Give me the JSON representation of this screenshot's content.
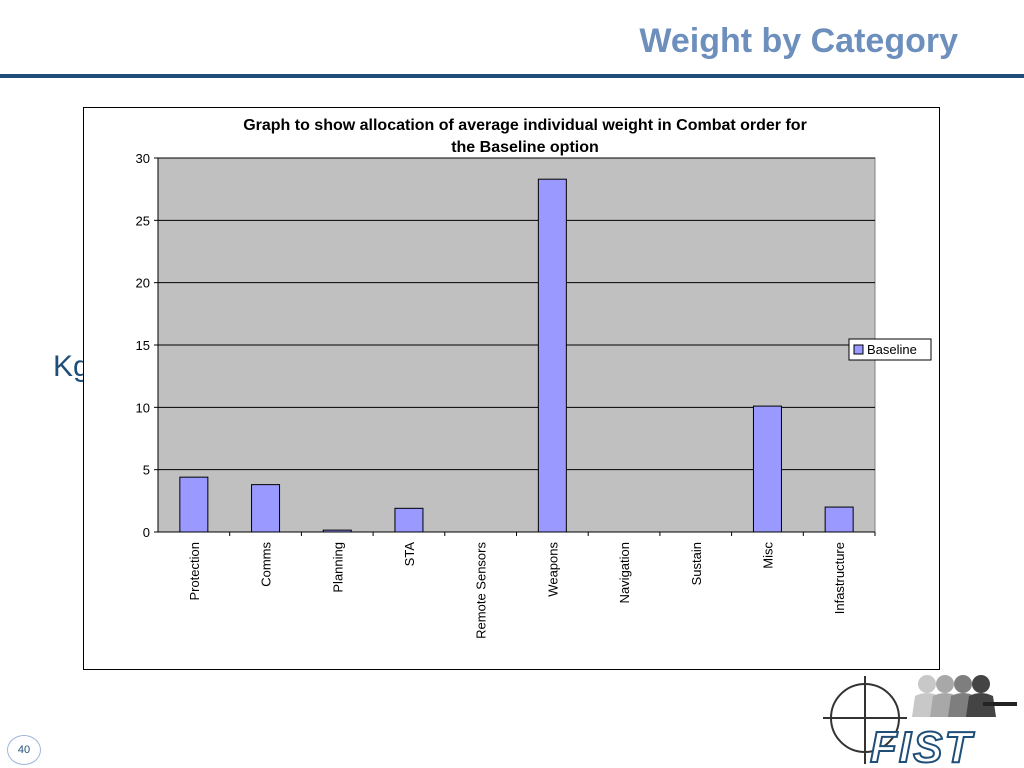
{
  "slide": {
    "title": "Weight by Category",
    "y_unit_label": "Kgs",
    "page_number": "40"
  },
  "logo": {
    "text": "FIST"
  },
  "colors": {
    "title": "#6d8fbd",
    "rule": "#1f4e79",
    "bar": "#9999ff",
    "plot_bg": "#c0c0c0"
  },
  "chart_data": {
    "type": "bar",
    "title": "Graph to show allocation of average individual weight in Combat order for the Baseline option",
    "title_lines": [
      "Graph to show allocation of average individual weight in Combat order for",
      "the Baseline option"
    ],
    "categories": [
      "Protection",
      "Comms",
      "Planning",
      "STA",
      "Remote Sensors",
      "Weapons",
      "Navigation",
      "Sustain",
      "Misc",
      "Infastructure"
    ],
    "series": [
      {
        "name": "Baseline",
        "values": [
          4.4,
          3.8,
          0.15,
          1.9,
          0,
          28.3,
          0,
          0,
          10.1,
          2.0
        ]
      }
    ],
    "ylim": [
      0,
      30
    ],
    "yticks": [
      0,
      5,
      10,
      15,
      20,
      25,
      30
    ],
    "grid": true,
    "legend": "right"
  }
}
